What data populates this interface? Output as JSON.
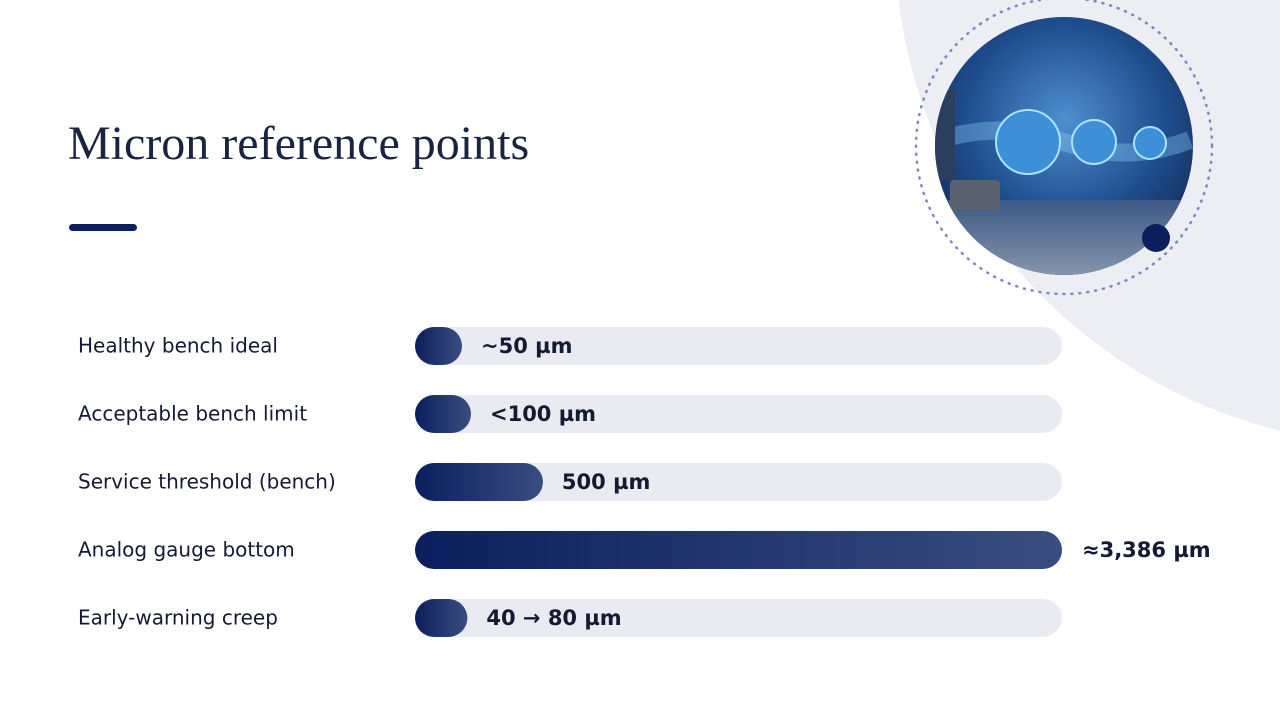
{
  "chart_data": {
    "type": "bar",
    "title": "Micron reference points",
    "categories": [
      "Healthy bench ideal",
      "Acceptable bench limit",
      "Service threshold (bench)",
      "Analog gauge bottom",
      "Early-warning creep"
    ],
    "values": [
      50,
      100,
      500,
      3386,
      80
    ],
    "value_labels": [
      "~50 µm",
      "<100 µm",
      "500 µm",
      "≈3,386 µm",
      "40 → 80 µm"
    ],
    "xlim": [
      0,
      3386
    ],
    "color": "#0b1f5e"
  }
}
